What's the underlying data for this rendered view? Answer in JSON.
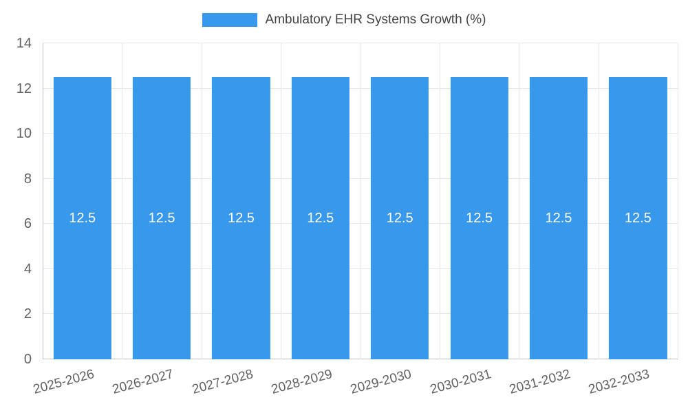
{
  "chart_data": {
    "type": "bar",
    "title": "Ambulatory EHR Systems Growth (%)",
    "categories": [
      "2025-2026",
      "2026-2027",
      "2027-2028",
      "2028-2029",
      "2029-2030",
      "2030-2031",
      "2031-2032",
      "2032-2033"
    ],
    "values": [
      12.5,
      12.5,
      12.5,
      12.5,
      12.5,
      12.5,
      12.5,
      12.5
    ],
    "xlabel": "",
    "ylabel": "",
    "ylim": [
      0,
      14
    ],
    "yticks": [
      0,
      2,
      4,
      6,
      8,
      10,
      12,
      14
    ],
    "grid": true,
    "legend_position": "top",
    "bar_color": "#3898ec",
    "data_label_color": "#ffffff",
    "axis_text_color": "#616161",
    "title_color": "#424242",
    "grid_color": "#e6e6e6",
    "axis_line_color": "#bdbdbd",
    "background_color": "#ffffff"
  }
}
